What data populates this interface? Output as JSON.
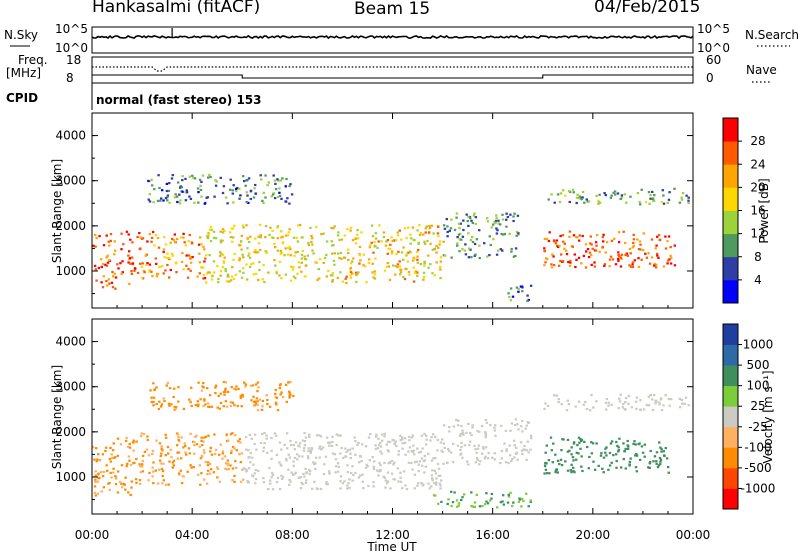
{
  "header": {
    "station": "Hankasalmi (fitACF)",
    "beam": "Beam 15",
    "date": "04/Feb/2015"
  },
  "aux": {
    "nsky_label": "N.Sky",
    "nsearch_label": "N.Search",
    "noise_ticks": [
      "10^5",
      "10^0"
    ],
    "freq_label": "Freq.",
    "freq_unit": "[MHz]",
    "freq_ticks": [
      "18",
      "8"
    ],
    "nave_label": "Nave",
    "nave_ticks": [
      "60",
      "0"
    ],
    "cpid_label": "CPID",
    "cpid_text": "normal (fast stereo) 153"
  },
  "colors": {
    "power": [
      "#0000ff",
      "#2e3ea6",
      "#4f9b5e",
      "#9cd23a",
      "#ffd700",
      "#ffa500",
      "#ff5a00",
      "#ff0000"
    ],
    "velocity": [
      "#ff0000",
      "#ff4500",
      "#ff8c00",
      "#ffb060",
      "#cbcbc3",
      "#7ccd3a",
      "#3f8f5c",
      "#2e6aa6",
      "#1f3fa0"
    ]
  },
  "chart_data": [
    {
      "type": "heatmap",
      "title": "Power",
      "ylabel": "Slant Range [km]",
      "xlabel": "Time UT",
      "ylim": [
        180,
        4500
      ],
      "xlim": [
        "00:00",
        "24:00"
      ],
      "x_ticks": [
        "00:00",
        "04:00",
        "08:00",
        "12:00",
        "16:00",
        "20:00",
        "00:00"
      ],
      "y_ticks": [
        "1000",
        "2000",
        "3000",
        "4000"
      ],
      "colorbar": {
        "label": "Power [dB]",
        "ticks": [
          "4",
          "8",
          "12",
          "16",
          "20",
          "24",
          "28"
        ],
        "range": [
          0,
          32
        ]
      },
      "regions": [
        {
          "t0": 0.0,
          "t1": 1.6,
          "r0": 600,
          "r1": 1900,
          "level": 27
        },
        {
          "t0": 1.6,
          "t1": 4.5,
          "r0": 850,
          "r1": 1900,
          "level": 24
        },
        {
          "t0": 4.5,
          "t1": 10.0,
          "r0": 750,
          "r1": 2050,
          "level": 18
        },
        {
          "t0": 10.0,
          "t1": 14.0,
          "r0": 750,
          "r1": 2050,
          "level": 20
        },
        {
          "t0": 14.0,
          "t1": 17.0,
          "r0": 1300,
          "r1": 2300,
          "level": 10
        },
        {
          "t0": 18.0,
          "t1": 23.3,
          "r0": 1100,
          "r1": 1900,
          "level": 27
        },
        {
          "t0": 2.2,
          "t1": 8.0,
          "r0": 2500,
          "r1": 3150,
          "level": 9
        },
        {
          "t0": 18.0,
          "t1": 23.8,
          "r0": 2500,
          "r1": 2850,
          "level": 11
        },
        {
          "t0": 16.5,
          "t1": 17.5,
          "r0": 350,
          "r1": 700,
          "level": 8
        }
      ]
    },
    {
      "type": "heatmap",
      "title": "Velocity",
      "ylabel": "Slant Range [km]",
      "xlabel": "Time UT",
      "ylim": [
        180,
        4500
      ],
      "xlim": [
        "00:00",
        "24:00"
      ],
      "x_ticks": [
        "00:00",
        "04:00",
        "08:00",
        "12:00",
        "16:00",
        "20:00",
        "00:00"
      ],
      "y_ticks": [
        "1000",
        "2000",
        "3000",
        "4000"
      ],
      "colorbar": {
        "label": "Velocity [m s⁻¹]",
        "ticks": [
          "-1000",
          "-500",
          "-100",
          "-25",
          "25",
          "100",
          "500",
          "1000"
        ]
      },
      "regions": [
        {
          "t0": 0.0,
          "t1": 1.6,
          "r0": 600,
          "r1": 1900,
          "value": -120
        },
        {
          "t0": 1.6,
          "t1": 6.0,
          "r0": 850,
          "r1": 2000,
          "value": -110
        },
        {
          "t0": 6.0,
          "t1": 14.0,
          "r0": 750,
          "r1": 2000,
          "value": 0
        },
        {
          "t0": 14.0,
          "t1": 17.5,
          "r0": 1300,
          "r1": 2300,
          "value": 0
        },
        {
          "t0": 18.0,
          "t1": 23.0,
          "r0": 1100,
          "r1": 1900,
          "value": 300
        },
        {
          "t0": 2.2,
          "t1": 8.0,
          "r0": 2500,
          "r1": 3150,
          "value": -150
        },
        {
          "t0": 18.0,
          "t1": 23.8,
          "r0": 2500,
          "r1": 2850,
          "value": 0
        },
        {
          "t0": 13.5,
          "t1": 17.5,
          "r0": 350,
          "r1": 700,
          "value": 100
        }
      ]
    }
  ]
}
